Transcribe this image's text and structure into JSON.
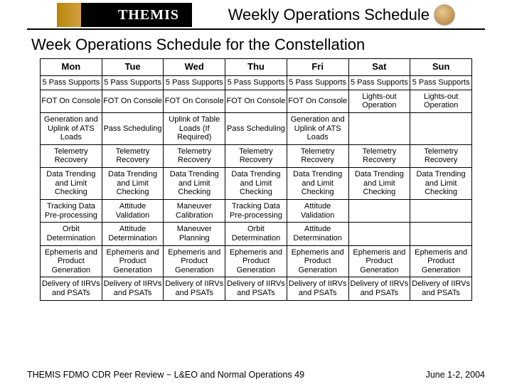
{
  "header": {
    "logo_text": "THEMIS",
    "title": "Weekly Operations Schedule"
  },
  "subtitle": "Week Operations Schedule for the Constellation",
  "table": {
    "columns": [
      "Mon",
      "Tue",
      "Wed",
      "Thu",
      "Fri",
      "Sat",
      "Sun"
    ],
    "rows": [
      [
        "5 Pass Supports",
        "5 Pass Supports",
        "5 Pass Supports",
        "5 Pass Supports",
        "5 Pass Supports",
        "5 Pass Supports",
        "5 Pass Supports"
      ],
      [
        "FOT On Console",
        "FOT On Console",
        "FOT On Console",
        "FOT On Console",
        "FOT On Console",
        "Lights-out Operation",
        "Lights-out Operation"
      ],
      [
        "Generation and Uplink of ATS Loads",
        "Pass Scheduling",
        "Uplink of Table Loads (If Required)",
        "Pass Scheduling",
        "Generation and Uplink of ATS Loads",
        "",
        ""
      ],
      [
        "Telemetry Recovery",
        "Telemetry Recovery",
        "Telemetry Recovery",
        "Telemetry Recovery",
        "Telemetry Recovery",
        "Telemetry Recovery",
        "Telemetry Recovery"
      ],
      [
        "Data Trending and Limit Checking",
        "Data Trending and Limit Checking",
        "Data Trending and Limit Checking",
        "Data Trending and Limit Checking",
        "Data Trending and Limit Checking",
        "Data Trending and Limit Checking",
        "Data Trending and Limit Checking"
      ],
      [
        "Tracking Data Pre-processing",
        "Attitude Validation",
        "Maneuver Calibration",
        "Tracking Data Pre-processing",
        "Attitude Validation",
        "",
        ""
      ],
      [
        "Orbit Determination",
        "Attitude Determination",
        "Maneuver Planning",
        "Orbit Determination",
        "Attitude Determination",
        "",
        ""
      ],
      [
        "Ephemeris and Product Generation",
        "Ephemeris and Product Generation",
        "Ephemeris and Product Generation",
        "Ephemeris and Product Generation",
        "Ephemeris and Product Generation",
        "Ephemeris and Product Generation",
        "Ephemeris and Product Generation"
      ],
      [
        "Delivery of IIRVs and PSATs",
        "Delivery of IIRVs and PSATs",
        "Delivery of IIRVs and PSATs",
        "Delivery of IIRVs and PSATs",
        "Delivery of IIRVs and PSATs",
        "Delivery of IIRVs and PSATs",
        "Delivery of IIRVs and PSATs"
      ]
    ]
  },
  "footer": {
    "left": "THEMIS FDMO CDR Peer Review − L&EO and Normal Operations 49",
    "right": "June 1-2, 2004"
  },
  "style": {
    "page_bg": "#ffffff",
    "border_color": "#000000",
    "header_rule_color": "#000000",
    "title_fontsize": 22,
    "subtitle_fontsize": 22,
    "th_fontsize": 13,
    "td_fontsize": 11,
    "footer_fontsize": 12.5,
    "logo_gold": "#b8860b",
    "logo_black": "#000000",
    "logo_text_color": "#ffffff"
  }
}
